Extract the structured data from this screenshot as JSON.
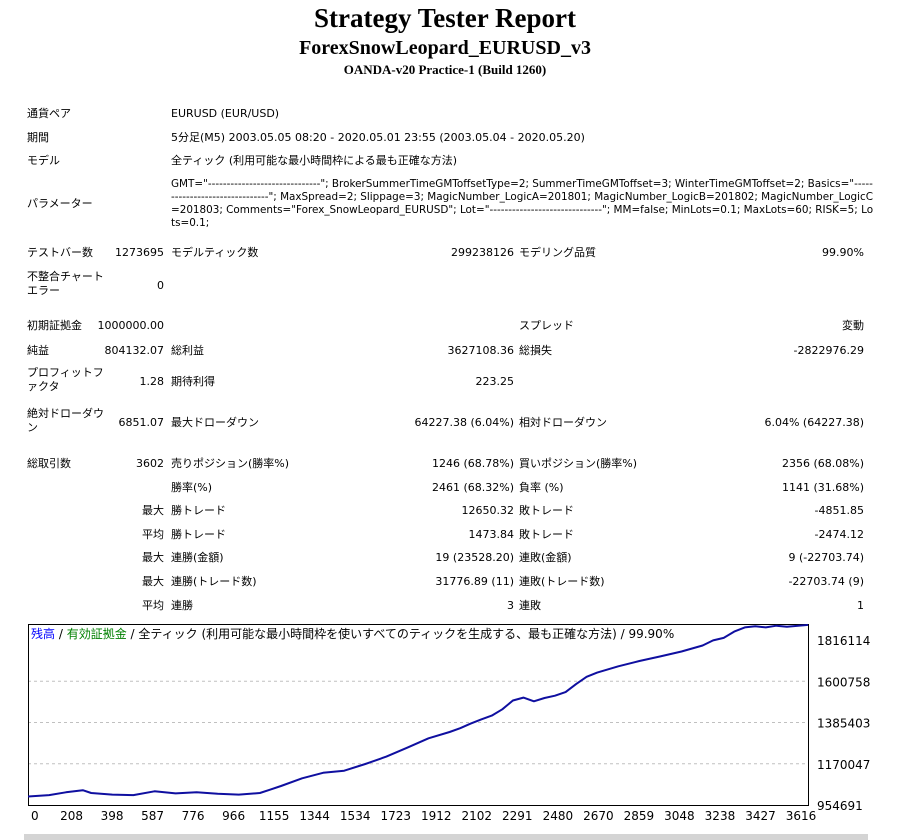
{
  "title": "Strategy Tester Report",
  "subtitle": "ForexSnowLeopard_EURUSD_v3",
  "server": "OANDA-v20 Practice-1 (Build 1260)",
  "info": {
    "symbol_label": "通貨ペア",
    "symbol_value": "EURUSD (EUR/USD)",
    "period_label": "期間",
    "period_value": "5分足(M5) 2003.05.05 08:20 - 2020.05.01 23:55 (2003.05.04 - 2020.05.20)",
    "model_label": "モデル",
    "model_value": "全ティック (利用可能な最小時間枠による最も正確な方法)",
    "params_label": "パラメーター",
    "params_value": "GMT=\"------------------------------\"; BrokerSummerTimeGMToffsetType=2; SummerTimeGMToffset=3; WinterTimeGMToffset=2; Basics=\"-------------------------------\"; MaxSpread=2; Slippage=3; MagicNumber_LogicA=201801; MagicNumber_LogicB=201802; MagicNumber_LogicC=201803; Comments=\"Forex_SnowLeopard_EURUSD\"; Lot=\"------------------------------\"; MM=false; MinLots=0.1; MaxLots=60; RISK=5; Lots=0.1;"
  },
  "stats": {
    "bars_label": "テストバー数",
    "bars_value": "1273695",
    "ticks_label": "モデルティック数",
    "ticks_value": "299238126",
    "quality_label": "モデリング品質",
    "quality_value": "99.90%",
    "mismatch_label": "不整合チャートエラー",
    "mismatch_value": "0",
    "deposit_label": "初期証拠金",
    "deposit_value": "1000000.00",
    "spread_label": "スプレッド",
    "spread_value": "変動",
    "net_label": "純益",
    "net_value": "804132.07",
    "gross_profit_label": "総利益",
    "gross_profit_value": "3627108.36",
    "gross_loss_label": "総損失",
    "gross_loss_value": "-2822976.29",
    "pf_label": "プロフィットファクタ",
    "pf_value": "1.28",
    "payoff_label": "期待利得",
    "payoff_value": "223.25",
    "abs_dd_label": "絶対ドローダウン",
    "abs_dd_value": "6851.07",
    "max_dd_label": "最大ドローダウン",
    "max_dd_value": "64227.38 (6.04%)",
    "rel_dd_label": "相対ドローダウン",
    "rel_dd_value": "6.04% (64227.38)",
    "trades_label": "総取引数",
    "trades_value": "3602",
    "short_label": "売りポジション(勝率%)",
    "short_value": "1246 (68.78%)",
    "long_label": "買いポジション(勝率%)",
    "long_value": "2356 (68.08%)",
    "win_label": "勝率(%)",
    "win_value": "2461 (68.32%)",
    "loss_label": "負率 (%)",
    "loss_value": "1141 (31.68%)",
    "max_prefix": "最大",
    "avg_prefix": "平均",
    "largest_win_label": "勝トレード",
    "largest_win_value": "12650.32",
    "largest_loss_label": "敗トレード",
    "largest_loss_value": "-4851.85",
    "avg_win_label": "勝トレード",
    "avg_win_value": "1473.84",
    "avg_loss_label": "敗トレード",
    "avg_loss_value": "-2474.12",
    "max_cons_wins_label": "連勝(金額)",
    "max_cons_wins_value": "19 (23528.20)",
    "max_cons_losses_label": "連敗(金額)",
    "max_cons_losses_value": "9 (-22703.74)",
    "max_cons_profit_label": "連勝(トレード数)",
    "max_cons_profit_value": "31776.89 (11)",
    "max_cons_loss_label": "連敗(トレード数)",
    "max_cons_loss_value": "-22703.74 (9)",
    "avg_cons_wins_label": "連勝",
    "avg_cons_wins_value": "3",
    "avg_cons_losses_label": "連敗",
    "avg_cons_losses_value": "1"
  },
  "chart_data": {
    "type": "line",
    "legend": {
      "balance": "残高",
      "separator": " / ",
      "equity": "有効証拠金",
      "description": " / 全ティック (利用可能な最小時間枠を使いすべてのティックを生成する、最も正確な方法) / 99.90%"
    },
    "colors": {
      "balance": "#0000ff",
      "equity": "#008000",
      "line": "#0f0fa0",
      "grid": "#c0c0c0"
    },
    "x_ticks": [
      0,
      208,
      398,
      587,
      776,
      966,
      1155,
      1344,
      1534,
      1723,
      1912,
      2102,
      2291,
      2480,
      2670,
      2859,
      3048,
      3238,
      3427,
      3616
    ],
    "y_ticks": [
      "1816114",
      "1600758",
      "1385403",
      "1170047",
      "954691"
    ],
    "xlim": [
      0,
      3700
    ],
    "ylim": [
      954691,
      1816114
    ],
    "series": [
      {
        "x": [
          0,
          100,
          180,
          260,
          300,
          400,
          500,
          600,
          700,
          800,
          900,
          1000,
          1100,
          1150,
          1200,
          1300,
          1400,
          1500,
          1600,
          1700,
          1800,
          1900,
          2000,
          2050,
          2100,
          2150,
          2200,
          2250,
          2300,
          2350,
          2400,
          2450,
          2500,
          2550,
          2600,
          2650,
          2700,
          2800,
          2900,
          3000,
          3100,
          3200,
          3250,
          3300,
          3350,
          3400,
          3450,
          3500,
          3550,
          3600,
          3700
        ],
        "y": [
          995000,
          1002000,
          1015000,
          1025000,
          1012000,
          1004000,
          1002000,
          1020000,
          1010000,
          1015000,
          1008000,
          1004000,
          1012000,
          1028000,
          1045000,
          1082000,
          1108000,
          1118000,
          1150000,
          1185000,
          1228000,
          1272000,
          1302000,
          1320000,
          1342000,
          1362000,
          1380000,
          1410000,
          1452000,
          1466000,
          1448000,
          1464000,
          1475000,
          1492000,
          1530000,
          1565000,
          1585000,
          1615000,
          1640000,
          1662000,
          1685000,
          1714000,
          1738000,
          1750000,
          1780000,
          1800000,
          1805000,
          1800000,
          1808000,
          1803000,
          1812000
        ]
      }
    ]
  }
}
